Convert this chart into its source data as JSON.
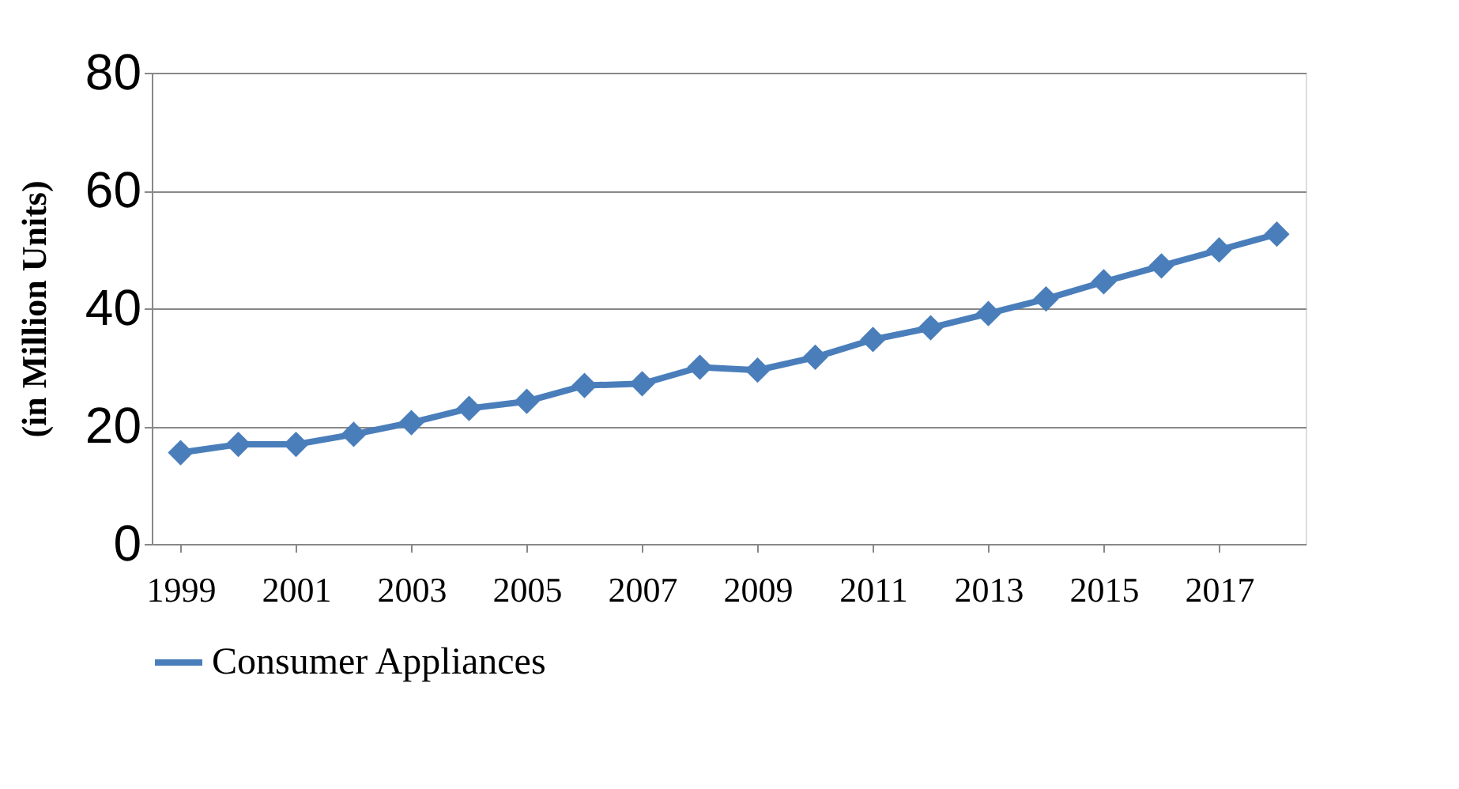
{
  "chart_data": {
    "type": "line",
    "ylabel": "(in Million Units)",
    "x": [
      1999,
      2000,
      2001,
      2002,
      2003,
      2004,
      2005,
      2006,
      2007,
      2008,
      2009,
      2010,
      2011,
      2012,
      2013,
      2014,
      2015,
      2016,
      2017,
      2018
    ],
    "series": [
      {
        "name": "Consumer Appliances",
        "color": "#4a7ebb",
        "values": [
          15.5,
          16.9,
          16.9,
          18.6,
          20.6,
          23.0,
          24.2,
          26.9,
          27.2,
          30.0,
          29.5,
          31.7,
          34.7,
          36.7,
          39.1,
          41.6,
          44.5,
          47.2,
          49.9,
          52.6
        ]
      }
    ],
    "xlim": [
      1998.5,
      2018.5
    ],
    "xticks": [
      1999,
      2001,
      2003,
      2005,
      2007,
      2009,
      2011,
      2013,
      2015,
      2017
    ],
    "ylim": [
      0,
      80
    ],
    "yticks": [
      0,
      20,
      40,
      60,
      80
    ],
    "grid": "y",
    "legend": "bottom",
    "marker": "diamond",
    "line_style": "solid"
  }
}
